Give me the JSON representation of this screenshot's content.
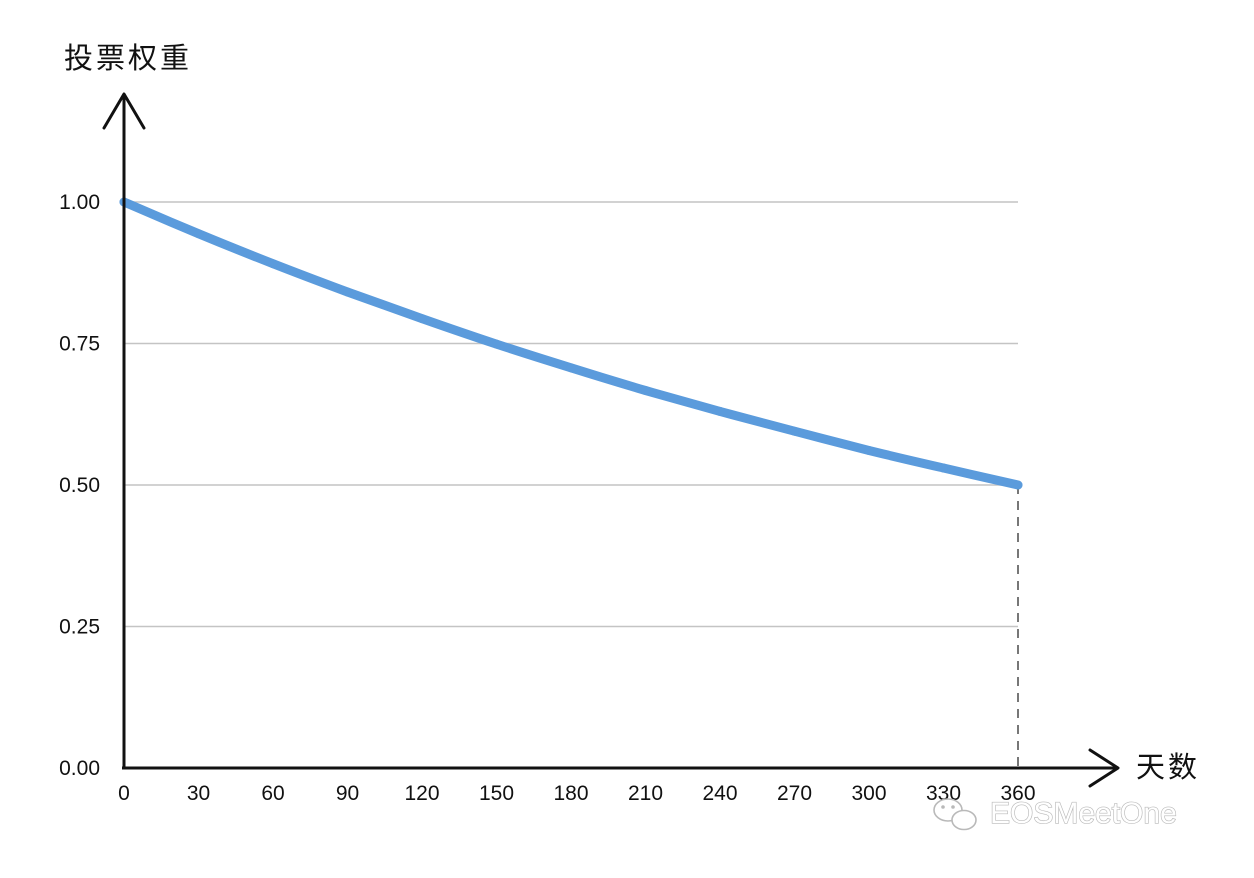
{
  "chart_data": {
    "type": "line",
    "title": "",
    "ylabel": "投票权重",
    "xlabel": "天数",
    "xlim": [
      0,
      360
    ],
    "ylim": [
      0,
      1
    ],
    "x_ticks": [
      {
        "value": 0,
        "label": "0"
      },
      {
        "value": 30,
        "label": "30"
      },
      {
        "value": 60,
        "label": "60"
      },
      {
        "value": 90,
        "label": "90"
      },
      {
        "value": 120,
        "label": "120"
      },
      {
        "value": 150,
        "label": "150"
      },
      {
        "value": 180,
        "label": "180"
      },
      {
        "value": 210,
        "label": "210"
      },
      {
        "value": 240,
        "label": "240"
      },
      {
        "value": 270,
        "label": "270"
      },
      {
        "value": 300,
        "label": "300"
      },
      {
        "value": 330,
        "label": "330"
      },
      {
        "value": 360,
        "label": "360"
      }
    ],
    "y_ticks": [
      {
        "value": 0,
        "label": "0.00"
      },
      {
        "value": 0.25,
        "label": "0.25"
      },
      {
        "value": 0.5,
        "label": "0.50"
      },
      {
        "value": 0.75,
        "label": "0.75"
      },
      {
        "value": 1,
        "label": "1.00"
      }
    ],
    "grid": true,
    "series": [
      {
        "color": "#5b9bdc",
        "x": [
          0,
          30,
          60,
          90,
          120,
          150,
          180,
          210,
          240,
          270,
          300,
          330,
          360
        ],
        "y": [
          1.0,
          0.944,
          0.891,
          0.841,
          0.794,
          0.749,
          0.707,
          0.667,
          0.63,
          0.595,
          0.561,
          0.53,
          0.5
        ]
      }
    ],
    "annotations": [
      {
        "type": "dashed-vertical",
        "x": 360,
        "from_y": 0,
        "to_y": 0.5
      }
    ]
  },
  "watermark": {
    "text": "EOSMeetOne",
    "icon": "wechat-icon"
  },
  "colors": {
    "axis": "#111111",
    "grid": "#c4c4c4",
    "line": "#5b9bdc",
    "dash": "#777777"
  }
}
